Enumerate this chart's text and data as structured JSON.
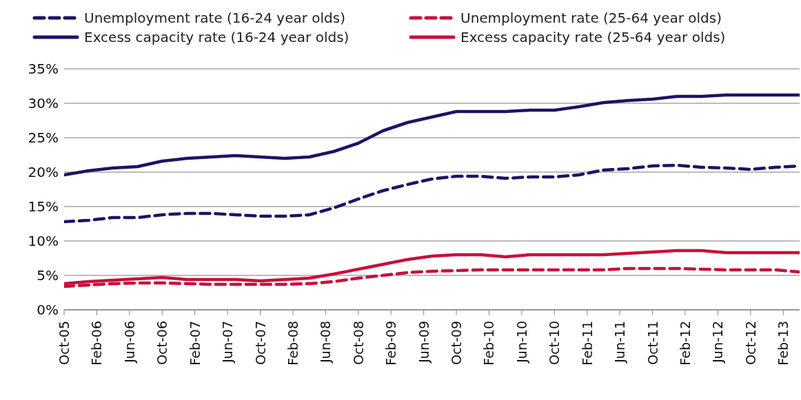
{
  "chart_data": {
    "type": "line",
    "x": [
      "2005-10",
      "2006-01",
      "2006-04",
      "2006-07",
      "2006-10",
      "2007-01",
      "2007-04",
      "2007-07",
      "2007-10",
      "2008-01",
      "2008-04",
      "2008-07",
      "2008-10",
      "2009-01",
      "2009-04",
      "2009-07",
      "2009-10",
      "2010-01",
      "2010-04",
      "2010-07",
      "2010-10",
      "2011-01",
      "2011-04",
      "2011-07",
      "2011-10",
      "2012-01",
      "2012-04",
      "2012-07",
      "2012-10",
      "2013-01",
      "2013-04"
    ],
    "series": [
      {
        "name": "Unemployment rate (16-24 year olds)",
        "color": "#1c1464",
        "line_style": "dashed",
        "values": [
          12.8,
          13.0,
          13.4,
          13.4,
          13.8,
          14.0,
          14.0,
          13.8,
          13.6,
          13.6,
          13.8,
          14.8,
          16.1,
          17.3,
          18.2,
          19.0,
          19.4,
          19.4,
          19.1,
          19.3,
          19.3,
          19.6,
          20.3,
          20.5,
          20.9,
          21.0,
          20.7,
          20.6,
          20.4,
          20.7,
          20.9
        ]
      },
      {
        "name": "Unemployment rate (25-64 year olds)",
        "color": "#c8103c",
        "line_style": "dashed",
        "values": [
          3.4,
          3.6,
          3.8,
          3.9,
          3.9,
          3.8,
          3.7,
          3.7,
          3.7,
          3.7,
          3.8,
          4.1,
          4.6,
          5.0,
          5.4,
          5.6,
          5.7,
          5.8,
          5.8,
          5.8,
          5.8,
          5.8,
          5.8,
          6.0,
          6.0,
          6.0,
          5.9,
          5.8,
          5.8,
          5.8,
          5.5
        ]
      },
      {
        "name": "Excess capacity rate (16-24 year olds)",
        "color": "#1c1464",
        "line_style": "solid",
        "values": [
          19.6,
          20.2,
          20.6,
          20.8,
          21.6,
          22.0,
          22.2,
          22.4,
          22.2,
          22.0,
          22.2,
          23.0,
          24.2,
          26.0,
          27.2,
          28.0,
          28.8,
          28.8,
          28.8,
          29.0,
          29.0,
          29.5,
          30.1,
          30.4,
          30.6,
          31.0,
          31.0,
          31.2,
          31.2,
          31.2,
          31.2
        ]
      },
      {
        "name": "Excess capacity rate (25-64 year olds)",
        "color": "#c8103c",
        "line_style": "solid",
        "values": [
          3.8,
          4.1,
          4.3,
          4.5,
          4.7,
          4.4,
          4.4,
          4.4,
          4.2,
          4.4,
          4.6,
          5.2,
          5.9,
          6.6,
          7.3,
          7.8,
          8.0,
          8.0,
          7.7,
          8.0,
          8.0,
          8.0,
          8.0,
          8.2,
          8.4,
          8.6,
          8.6,
          8.3,
          8.3,
          8.3,
          8.3
        ]
      }
    ],
    "xlim": [
      "2005-10",
      "2013-04"
    ],
    "xticks": [
      {
        "value": "2005-10",
        "label": "Oct-05"
      },
      {
        "value": "2006-02",
        "label": "Feb-06"
      },
      {
        "value": "2006-06",
        "label": "Jun-06"
      },
      {
        "value": "2006-10",
        "label": "Oct-06"
      },
      {
        "value": "2007-02",
        "label": "Feb-07"
      },
      {
        "value": "2007-06",
        "label": "Jun-07"
      },
      {
        "value": "2007-10",
        "label": "Oct-07"
      },
      {
        "value": "2008-02",
        "label": "Feb-08"
      },
      {
        "value": "2008-06",
        "label": "Jun-08"
      },
      {
        "value": "2008-10",
        "label": "Oct-08"
      },
      {
        "value": "2009-02",
        "label": "Feb-09"
      },
      {
        "value": "2009-06",
        "label": "Jun-09"
      },
      {
        "value": "2009-10",
        "label": "Oct-09"
      },
      {
        "value": "2010-02",
        "label": "Feb-10"
      },
      {
        "value": "2010-06",
        "label": "Jun-10"
      },
      {
        "value": "2010-10",
        "label": "Oct-10"
      },
      {
        "value": "2011-02",
        "label": "Feb-11"
      },
      {
        "value": "2011-06",
        "label": "Jun-11"
      },
      {
        "value": "2011-10",
        "label": "Oct-11"
      },
      {
        "value": "2012-02",
        "label": "Feb-12"
      },
      {
        "value": "2012-06",
        "label": "Jun-12"
      },
      {
        "value": "2012-10",
        "label": "Oct-12"
      },
      {
        "value": "2013-02",
        "label": "Feb-13"
      }
    ],
    "ylim": [
      0,
      35
    ],
    "yticks": [
      {
        "value": 0,
        "label": "0%"
      },
      {
        "value": 5,
        "label": "5%"
      },
      {
        "value": 10,
        "label": "10%"
      },
      {
        "value": 15,
        "label": "15%"
      },
      {
        "value": 20,
        "label": "20%"
      },
      {
        "value": 25,
        "label": "25%"
      },
      {
        "value": 30,
        "label": "30%"
      },
      {
        "value": 35,
        "label": "35%"
      }
    ],
    "grid": "y",
    "legend": "top",
    "marker": "none"
  }
}
